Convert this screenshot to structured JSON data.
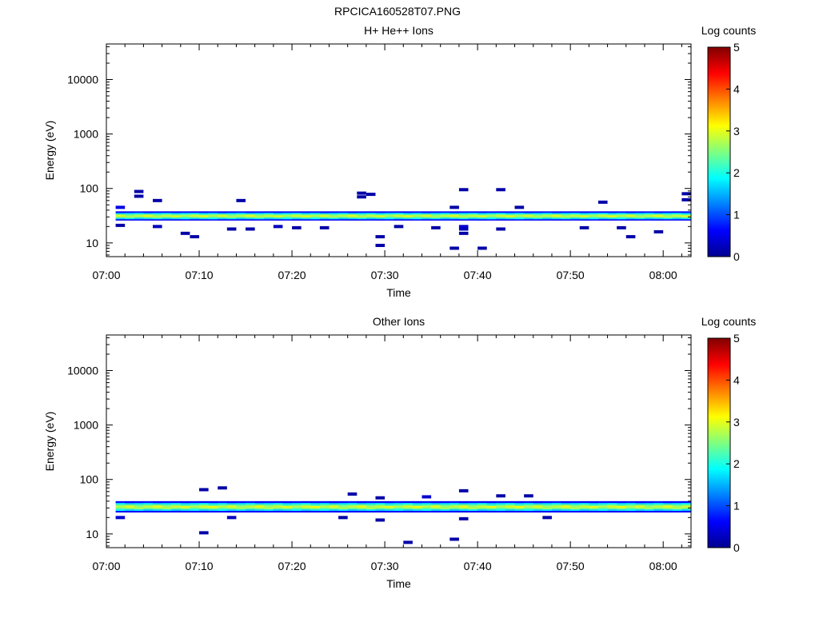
{
  "page_title": "RPCICA160528T07.PNG",
  "chart_data": [
    {
      "type": "heatmap",
      "title": "H+ He++ Ions",
      "xlabel": "Time",
      "ylabel": "Energy (eV)",
      "xlim": [
        "07:00",
        "08:03"
      ],
      "ylim": [
        5.6,
        45000
      ],
      "y_scale": "log",
      "x_ticks": [
        "07:00",
        "07:10",
        "07:20",
        "07:30",
        "07:40",
        "07:50",
        "08:00"
      ],
      "y_ticks": [
        "10",
        "100",
        "1000",
        "10000"
      ],
      "colorbar": {
        "label": "Log counts",
        "min": 0,
        "max": 5,
        "ticks": [
          "0",
          "1",
          "2",
          "3",
          "4",
          "5"
        ]
      },
      "band": {
        "energy_low": 26,
        "energy_high": 38,
        "peak_energy": 31,
        "peak_log_counts": 2.9
      },
      "scattered_points": [
        {
          "time": "07:01",
          "energy": 45,
          "log_counts": 0.5
        },
        {
          "time": "07:01",
          "energy": 21,
          "log_counts": 0.2
        },
        {
          "time": "07:03",
          "energy": 88,
          "log_counts": 0.2
        },
        {
          "time": "07:03",
          "energy": 72,
          "log_counts": 0.2
        },
        {
          "time": "07:05",
          "energy": 60,
          "log_counts": 0.2
        },
        {
          "time": "07:05",
          "energy": 20,
          "log_counts": 0.3
        },
        {
          "time": "07:08",
          "energy": 15,
          "log_counts": 0.2
        },
        {
          "time": "07:09",
          "energy": 13,
          "log_counts": 0.2
        },
        {
          "time": "07:13",
          "energy": 18,
          "log_counts": 0.2
        },
        {
          "time": "07:14",
          "energy": 60,
          "log_counts": 0.2
        },
        {
          "time": "07:15",
          "energy": 18,
          "log_counts": 0.2
        },
        {
          "time": "07:18",
          "energy": 20,
          "log_counts": 0.3
        },
        {
          "time": "07:20",
          "energy": 19,
          "log_counts": 0.2
        },
        {
          "time": "07:23",
          "energy": 19,
          "log_counts": 0.2
        },
        {
          "time": "07:27",
          "energy": 82,
          "log_counts": 0.2
        },
        {
          "time": "07:27",
          "energy": 70,
          "log_counts": 0.2
        },
        {
          "time": "07:28",
          "energy": 78,
          "log_counts": 0.2
        },
        {
          "time": "07:29",
          "energy": 13,
          "log_counts": 0.2
        },
        {
          "time": "07:29",
          "energy": 9,
          "log_counts": 0.2
        },
        {
          "time": "07:31",
          "energy": 20,
          "log_counts": 0.2
        },
        {
          "time": "07:35",
          "energy": 19,
          "log_counts": 0.2
        },
        {
          "time": "07:37",
          "energy": 45,
          "log_counts": 0.2
        },
        {
          "time": "07:37",
          "energy": 8,
          "log_counts": 0.2
        },
        {
          "time": "07:38",
          "energy": 95,
          "log_counts": 0.2
        },
        {
          "time": "07:38",
          "energy": 20,
          "log_counts": 0.4
        },
        {
          "time": "07:38",
          "energy": 18,
          "log_counts": 0.3
        },
        {
          "time": "07:38",
          "energy": 15,
          "log_counts": 0.2
        },
        {
          "time": "07:40",
          "energy": 8,
          "log_counts": 0.2
        },
        {
          "time": "07:42",
          "energy": 95,
          "log_counts": 0.2
        },
        {
          "time": "07:42",
          "energy": 18,
          "log_counts": 0.2
        },
        {
          "time": "07:44",
          "energy": 45,
          "log_counts": 0.2
        },
        {
          "time": "07:51",
          "energy": 19,
          "log_counts": 0.2
        },
        {
          "time": "07:53",
          "energy": 56,
          "log_counts": 0.2
        },
        {
          "time": "07:55",
          "energy": 19,
          "log_counts": 0.2
        },
        {
          "time": "07:56",
          "energy": 13,
          "log_counts": 0.2
        },
        {
          "time": "07:59",
          "energy": 16,
          "log_counts": 0.2
        },
        {
          "time": "08:02",
          "energy": 80,
          "log_counts": 0.2
        },
        {
          "time": "08:02",
          "energy": 62,
          "log_counts": 0.2
        }
      ]
    },
    {
      "type": "heatmap",
      "title": "Other Ions",
      "xlabel": "Time",
      "ylabel": "Energy (eV)",
      "xlim": [
        "07:00",
        "08:03"
      ],
      "ylim": [
        5.6,
        45000
      ],
      "y_scale": "log",
      "x_ticks": [
        "07:00",
        "07:10",
        "07:20",
        "07:30",
        "07:40",
        "07:50",
        "08:00"
      ],
      "y_ticks": [
        "10",
        "100",
        "1000",
        "10000"
      ],
      "colorbar": {
        "label": "Log counts",
        "min": 0,
        "max": 5,
        "ticks": [
          "0",
          "1",
          "2",
          "3",
          "4",
          "5"
        ]
      },
      "band": {
        "energy_low": 25,
        "energy_high": 40,
        "peak_energy": 31,
        "peak_log_counts": 2.9
      },
      "scattered_points": [
        {
          "time": "07:01",
          "energy": 20,
          "log_counts": 0.4
        },
        {
          "time": "07:10",
          "energy": 65,
          "log_counts": 0.2
        },
        {
          "time": "07:10",
          "energy": 10.5,
          "log_counts": 0.2
        },
        {
          "time": "07:12",
          "energy": 70,
          "log_counts": 0.2
        },
        {
          "time": "07:13",
          "energy": 20,
          "log_counts": 0.3
        },
        {
          "time": "07:26",
          "energy": 54,
          "log_counts": 0.2
        },
        {
          "time": "07:25",
          "energy": 20,
          "log_counts": 0.2
        },
        {
          "time": "07:29",
          "energy": 46,
          "log_counts": 0.2
        },
        {
          "time": "07:29",
          "energy": 18,
          "log_counts": 0.2
        },
        {
          "time": "07:32",
          "energy": 7,
          "log_counts": 0.2
        },
        {
          "time": "07:34",
          "energy": 48,
          "log_counts": 0.4
        },
        {
          "time": "07:37",
          "energy": 8,
          "log_counts": 0.2
        },
        {
          "time": "07:38",
          "energy": 62,
          "log_counts": 0.2
        },
        {
          "time": "07:38",
          "energy": 19,
          "log_counts": 0.2
        },
        {
          "time": "07:42",
          "energy": 50,
          "log_counts": 0.2
        },
        {
          "time": "07:45",
          "energy": 50,
          "log_counts": 0.2
        },
        {
          "time": "07:47",
          "energy": 20,
          "log_counts": 0.2
        }
      ]
    }
  ]
}
